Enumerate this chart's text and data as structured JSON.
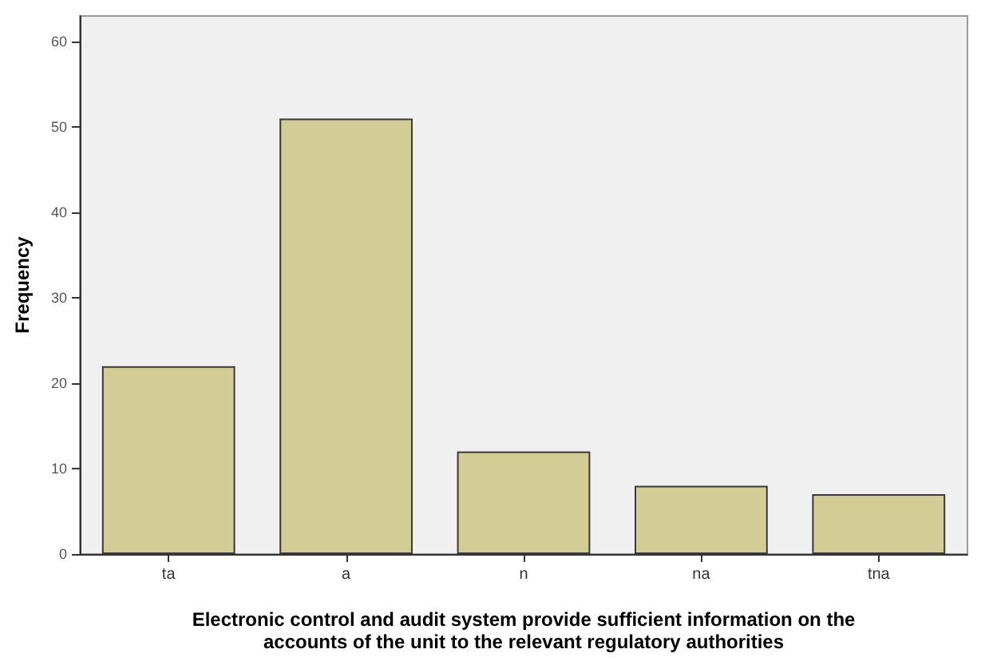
{
  "chart_data": {
    "type": "bar",
    "xlabel": "Electronic control and audit system provide sufficient information on the\naccounts of the unit to the relevant regulatory authorities",
    "ylabel": "Frequency",
    "categories": [
      "ta",
      "a",
      "n",
      "na",
      "tna"
    ],
    "values": [
      22,
      51,
      12,
      8,
      7
    ],
    "color": "#d3cc94",
    "ylim": [
      0,
      63
    ],
    "yticks": [
      0,
      10,
      20,
      30,
      40,
      50,
      60
    ],
    "grid": false
  }
}
